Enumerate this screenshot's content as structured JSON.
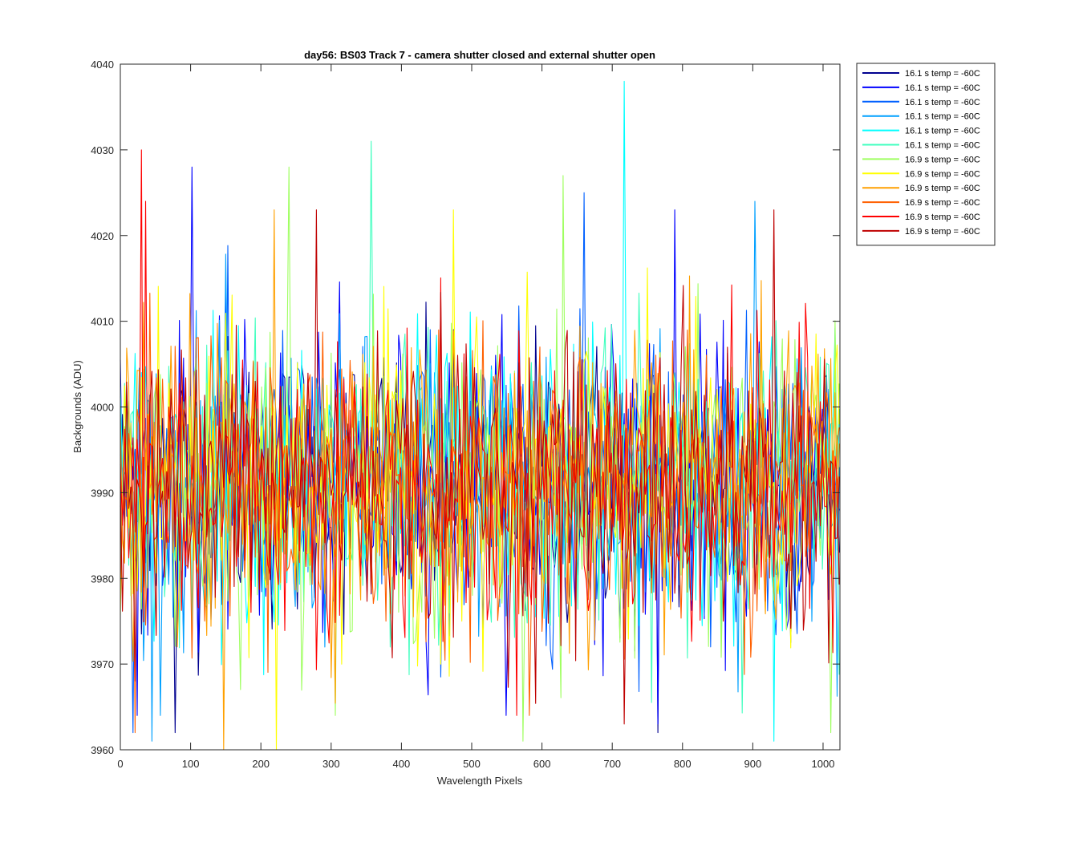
{
  "chart_data": {
    "type": "line",
    "title": "day56: BS03  Track 7 - camera shutter closed and external shutter open",
    "xlabel": "Wavelength Pixels",
    "ylabel": "Backgrounds (ADU)",
    "xlim": [
      0,
      1024
    ],
    "ylim": [
      3960,
      4040
    ],
    "xticks": [
      0,
      100,
      200,
      300,
      400,
      500,
      600,
      700,
      800,
      900,
      1000
    ],
    "yticks": [
      3960,
      3970,
      3980,
      3990,
      4000,
      4010,
      4020,
      4030,
      4040
    ],
    "grid": false,
    "legend_position": "outside-top-right",
    "noise": {
      "mean": 3991,
      "std": 8.5,
      "step": 3
    },
    "series": [
      {
        "name": "16.1 s temp = -60C",
        "color": "#00008f",
        "peaks": [
          [
            766,
            3962
          ],
          [
            77,
            3962
          ]
        ]
      },
      {
        "name": "16.1 s temp = -60C",
        "color": "#0000ff",
        "peaks": [
          [
            103,
            4028
          ],
          [
            790,
            4023
          ],
          [
            765,
            3963
          ]
        ]
      },
      {
        "name": "16.1 s temp = -60C",
        "color": "#0060ff",
        "peaks": [
          [
            660,
            4025
          ],
          [
            18,
            3962
          ]
        ]
      },
      {
        "name": "16.1 s temp = -60C",
        "color": "#00a0ff",
        "peaks": [
          [
            902,
            4024
          ],
          [
            45,
            3961
          ]
        ]
      },
      {
        "name": "16.1 s temp = -60C",
        "color": "#00ffff",
        "peaks": [
          [
            717,
            4038
          ],
          [
            930,
            3961
          ]
        ]
      },
      {
        "name": "16.1 s temp = -60C",
        "color": "#40ffbf",
        "peaks": [
          [
            357,
            4031
          ]
        ]
      },
      {
        "name": "16.9 s temp = -60C",
        "color": "#9fff60",
        "peaks": [
          [
            240,
            4028
          ],
          [
            630,
            4027
          ],
          [
            573,
            3961
          ],
          [
            1012,
            3962
          ]
        ]
      },
      {
        "name": "16.9 s temp = -60C",
        "color": "#ffff00",
        "peaks": [
          [
            474,
            4023
          ],
          [
            221,
            3960
          ]
        ]
      },
      {
        "name": "16.9 s temp = -60C",
        "color": "#ffa000",
        "peaks": [
          [
            219,
            4023
          ],
          [
            147,
            3960
          ]
        ]
      },
      {
        "name": "16.9 s temp = -60C",
        "color": "#ff6000",
        "peaks": [
          [
            22,
            3962
          ]
        ]
      },
      {
        "name": "16.9 s temp = -60C",
        "color": "#ff0000",
        "peaks": [
          [
            31,
            4030
          ],
          [
            37,
            4024
          ]
        ]
      },
      {
        "name": "16.9 s temp = -60C",
        "color": "#bf0000",
        "peaks": [
          [
            280,
            4023
          ],
          [
            930,
            4023
          ],
          [
            717,
            3963
          ]
        ]
      }
    ]
  }
}
